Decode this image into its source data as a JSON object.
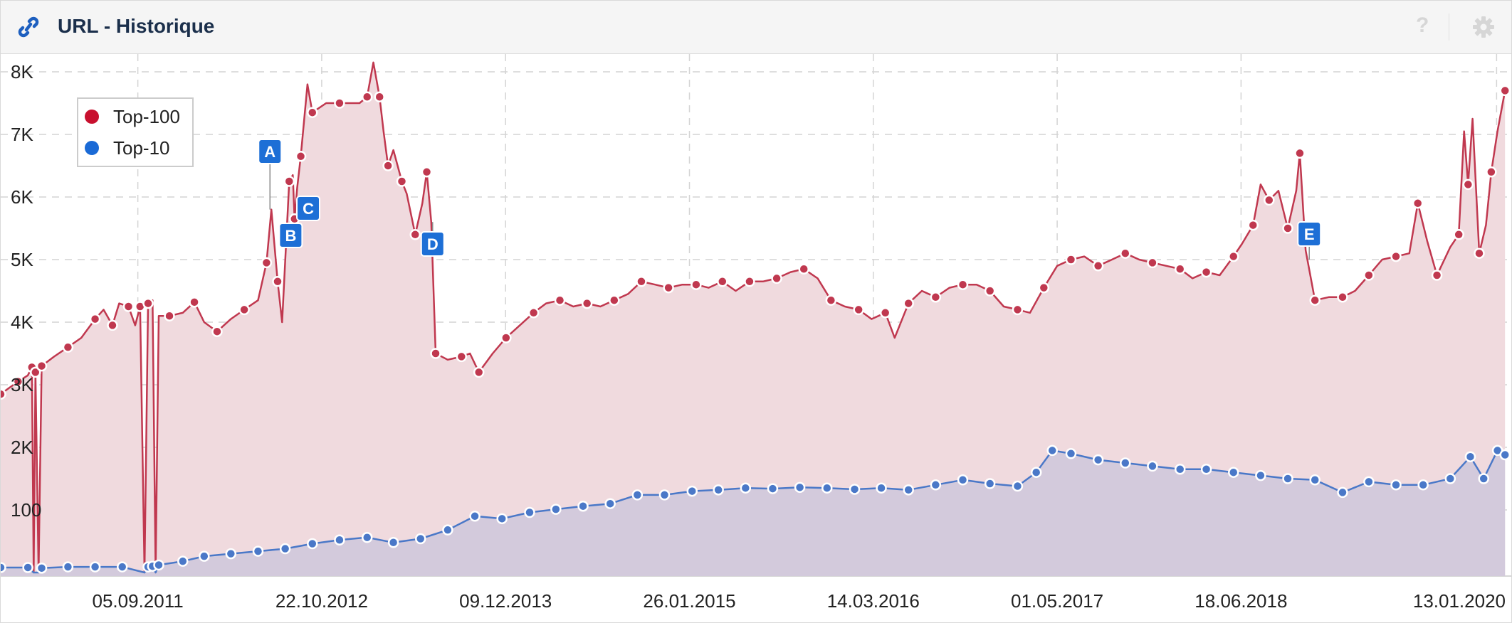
{
  "header": {
    "title": "URL - Historique",
    "help_label": "?",
    "icons": {
      "left": "link-icon",
      "help": "question-icon",
      "settings": "gear-icon"
    },
    "accent_color": "#1d5fbf"
  },
  "legend": {
    "placement": "top-left",
    "items": [
      {
        "label": "Top-100",
        "color": "#c8102e"
      },
      {
        "label": "Top-10",
        "color": "#1a6ad6"
      }
    ]
  },
  "chart_data": {
    "type": "area",
    "x_tick_labels": [
      "05.09.2011",
      "22.10.2012",
      "09.12.2013",
      "26.01.2015",
      "14.03.2016",
      "01.05.2017",
      "18.06.2018",
      "13.01.2020"
    ],
    "y_tick_labels": [
      "100",
      "2K",
      "3K",
      "4K",
      "5K",
      "6K",
      "7K",
      "8K"
    ],
    "ylim": [
      0,
      8200
    ],
    "xlim": [
      "2010-11-01",
      "2020-02-15"
    ],
    "grid": true,
    "series": [
      {
        "name": "Top-100",
        "color": "#c0384f",
        "fill": "#f0dade",
        "points": [
          [
            "2010-11-01",
            2850
          ],
          [
            "2010-11-20",
            2950
          ],
          [
            "2010-12-10",
            3050
          ],
          [
            "2011-01-01",
            3150
          ],
          [
            "2011-01-10",
            3280
          ],
          [
            "2011-01-14",
            0
          ],
          [
            "2011-01-18",
            3200
          ],
          [
            "2011-01-25",
            0
          ],
          [
            "2011-02-01",
            3300
          ],
          [
            "2011-03-01",
            3450
          ],
          [
            "2011-04-01",
            3600
          ],
          [
            "2011-05-01",
            3750
          ],
          [
            "2011-06-01",
            4050
          ],
          [
            "2011-06-20",
            4200
          ],
          [
            "2011-07-10",
            3950
          ],
          [
            "2011-07-25",
            4300
          ],
          [
            "2011-08-15",
            4250
          ],
          [
            "2011-08-30",
            3950
          ],
          [
            "2011-09-10",
            4250
          ],
          [
            "2011-09-20",
            0
          ],
          [
            "2011-09-28",
            4300
          ],
          [
            "2011-10-08",
            4350
          ],
          [
            "2011-10-15",
            0
          ],
          [
            "2011-10-22",
            4100
          ],
          [
            "2011-11-15",
            4100
          ],
          [
            "2011-12-15",
            4150
          ],
          [
            "2012-01-10",
            4320
          ],
          [
            "2012-02-01",
            4000
          ],
          [
            "2012-03-01",
            3850
          ],
          [
            "2012-04-01",
            4050
          ],
          [
            "2012-05-01",
            4200
          ],
          [
            "2012-06-01",
            4350
          ],
          [
            "2012-06-20",
            4950
          ],
          [
            "2012-07-01",
            5800
          ],
          [
            "2012-07-15",
            4650
          ],
          [
            "2012-07-25",
            4000
          ],
          [
            "2012-08-10",
            6250
          ],
          [
            "2012-08-18",
            6350
          ],
          [
            "2012-08-22",
            5650
          ],
          [
            "2012-08-28",
            6150
          ],
          [
            "2012-09-05",
            6650
          ],
          [
            "2012-09-20",
            7800
          ],
          [
            "2012-10-01",
            7350
          ],
          [
            "2012-11-01",
            7500
          ],
          [
            "2012-12-01",
            7500
          ],
          [
            "2013-01-15",
            7500
          ],
          [
            "2013-02-01",
            7600
          ],
          [
            "2013-02-15",
            8150
          ],
          [
            "2013-03-01",
            7600
          ],
          [
            "2013-03-10",
            7050
          ],
          [
            "2013-03-20",
            6500
          ],
          [
            "2013-04-01",
            6750
          ],
          [
            "2013-04-20",
            6250
          ],
          [
            "2013-05-01",
            6050
          ],
          [
            "2013-05-20",
            5400
          ],
          [
            "2013-06-05",
            5900
          ],
          [
            "2013-06-15",
            6400
          ],
          [
            "2013-06-25",
            5600
          ],
          [
            "2013-07-05",
            3500
          ],
          [
            "2013-08-01",
            3400
          ],
          [
            "2013-09-01",
            3450
          ],
          [
            "2013-09-20",
            3500
          ],
          [
            "2013-10-10",
            3200
          ],
          [
            "2013-11-10",
            3500
          ],
          [
            "2013-12-10",
            3750
          ],
          [
            "2014-01-10",
            3950
          ],
          [
            "2014-02-10",
            4150
          ],
          [
            "2014-03-10",
            4300
          ],
          [
            "2014-04-10",
            4350
          ],
          [
            "2014-05-10",
            4250
          ],
          [
            "2014-06-10",
            4300
          ],
          [
            "2014-07-10",
            4250
          ],
          [
            "2014-08-10",
            4350
          ],
          [
            "2014-09-10",
            4450
          ],
          [
            "2014-10-10",
            4650
          ],
          [
            "2014-11-10",
            4600
          ],
          [
            "2014-12-10",
            4550
          ],
          [
            "2015-01-10",
            4600
          ],
          [
            "2015-02-10",
            4600
          ],
          [
            "2015-03-10",
            4550
          ],
          [
            "2015-04-10",
            4650
          ],
          [
            "2015-05-10",
            4500
          ],
          [
            "2015-06-10",
            4650
          ],
          [
            "2015-07-10",
            4650
          ],
          [
            "2015-08-10",
            4700
          ],
          [
            "2015-09-10",
            4800
          ],
          [
            "2015-10-10",
            4850
          ],
          [
            "2015-11-10",
            4700
          ],
          [
            "2015-12-10",
            4350
          ],
          [
            "2016-01-10",
            4250
          ],
          [
            "2016-02-10",
            4200
          ],
          [
            "2016-03-10",
            4050
          ],
          [
            "2016-04-10",
            4150
          ],
          [
            "2016-05-01",
            3750
          ],
          [
            "2016-06-01",
            4300
          ],
          [
            "2016-07-01",
            4500
          ],
          [
            "2016-08-01",
            4400
          ],
          [
            "2016-09-01",
            4550
          ],
          [
            "2016-10-01",
            4600
          ],
          [
            "2016-11-01",
            4600
          ],
          [
            "2016-12-01",
            4500
          ],
          [
            "2017-01-01",
            4250
          ],
          [
            "2017-02-01",
            4200
          ],
          [
            "2017-03-01",
            4150
          ],
          [
            "2017-04-01",
            4550
          ],
          [
            "2017-05-01",
            4900
          ],
          [
            "2017-06-01",
            5000
          ],
          [
            "2017-07-01",
            5050
          ],
          [
            "2017-08-01",
            4900
          ],
          [
            "2017-09-01",
            5000
          ],
          [
            "2017-10-01",
            5100
          ],
          [
            "2017-11-01",
            5000
          ],
          [
            "2017-12-01",
            4950
          ],
          [
            "2018-01-01",
            4900
          ],
          [
            "2018-02-01",
            4850
          ],
          [
            "2018-03-01",
            4700
          ],
          [
            "2018-04-01",
            4800
          ],
          [
            "2018-05-01",
            4750
          ],
          [
            "2018-06-01",
            5050
          ],
          [
            "2018-06-20",
            5250
          ],
          [
            "2018-07-15",
            5550
          ],
          [
            "2018-08-01",
            6200
          ],
          [
            "2018-08-20",
            5950
          ],
          [
            "2018-09-10",
            6100
          ],
          [
            "2018-10-01",
            5500
          ],
          [
            "2018-10-20",
            6100
          ],
          [
            "2018-10-28",
            6700
          ],
          [
            "2018-11-10",
            5150
          ],
          [
            "2018-12-01",
            4350
          ],
          [
            "2019-01-01",
            4400
          ],
          [
            "2019-02-01",
            4400
          ],
          [
            "2019-03-01",
            4500
          ],
          [
            "2019-04-01",
            4750
          ],
          [
            "2019-05-01",
            5000
          ],
          [
            "2019-06-01",
            5050
          ],
          [
            "2019-07-01",
            5100
          ],
          [
            "2019-07-20",
            5900
          ],
          [
            "2019-08-10",
            5300
          ],
          [
            "2019-09-01",
            4750
          ],
          [
            "2019-10-01",
            5200
          ],
          [
            "2019-10-20",
            5400
          ],
          [
            "2019-11-01",
            7050
          ],
          [
            "2019-11-10",
            6200
          ],
          [
            "2019-11-20",
            7250
          ],
          [
            "2019-12-05",
            5100
          ],
          [
            "2019-12-20",
            5550
          ],
          [
            "2020-01-01",
            6400
          ],
          [
            "2020-01-15",
            7050
          ],
          [
            "2020-02-01",
            7700
          ]
        ]
      },
      {
        "name": "Top-10",
        "color": "#4a78c8",
        "fill": "#cfc8dc",
        "points": [
          [
            "2010-11-01",
            80
          ],
          [
            "2011-01-01",
            80
          ],
          [
            "2011-01-14",
            0
          ],
          [
            "2011-01-25",
            0
          ],
          [
            "2011-02-01",
            70
          ],
          [
            "2011-04-01",
            90
          ],
          [
            "2011-06-01",
            90
          ],
          [
            "2011-08-01",
            90
          ],
          [
            "2011-09-20",
            0
          ],
          [
            "2011-09-28",
            90
          ],
          [
            "2011-10-08",
            100
          ],
          [
            "2011-10-15",
            0
          ],
          [
            "2011-10-22",
            120
          ],
          [
            "2011-12-15",
            180
          ],
          [
            "2012-02-01",
            260
          ],
          [
            "2012-04-01",
            300
          ],
          [
            "2012-06-01",
            340
          ],
          [
            "2012-08-01",
            380
          ],
          [
            "2012-10-01",
            460
          ],
          [
            "2012-12-01",
            520
          ],
          [
            "2013-02-01",
            560
          ],
          [
            "2013-04-01",
            480
          ],
          [
            "2013-06-01",
            540
          ],
          [
            "2013-08-01",
            680
          ],
          [
            "2013-10-01",
            900
          ],
          [
            "2013-12-01",
            860
          ],
          [
            "2014-02-01",
            960
          ],
          [
            "2014-04-01",
            1010
          ],
          [
            "2014-06-01",
            1060
          ],
          [
            "2014-08-01",
            1100
          ],
          [
            "2014-10-01",
            1240
          ],
          [
            "2014-12-01",
            1240
          ],
          [
            "2015-02-01",
            1300
          ],
          [
            "2015-04-01",
            1320
          ],
          [
            "2015-06-01",
            1350
          ],
          [
            "2015-08-01",
            1340
          ],
          [
            "2015-10-01",
            1360
          ],
          [
            "2015-12-01",
            1350
          ],
          [
            "2016-02-01",
            1330
          ],
          [
            "2016-04-01",
            1350
          ],
          [
            "2016-06-01",
            1320
          ],
          [
            "2016-08-01",
            1400
          ],
          [
            "2016-10-01",
            1480
          ],
          [
            "2016-12-01",
            1420
          ],
          [
            "2017-02-01",
            1380
          ],
          [
            "2017-03-15",
            1600
          ],
          [
            "2017-04-20",
            1950
          ],
          [
            "2017-06-01",
            1900
          ],
          [
            "2017-08-01",
            1800
          ],
          [
            "2017-10-01",
            1750
          ],
          [
            "2017-12-01",
            1700
          ],
          [
            "2018-02-01",
            1650
          ],
          [
            "2018-04-01",
            1650
          ],
          [
            "2018-06-01",
            1600
          ],
          [
            "2018-08-01",
            1550
          ],
          [
            "2018-10-01",
            1500
          ],
          [
            "2018-12-01",
            1480
          ],
          [
            "2019-02-01",
            1280
          ],
          [
            "2019-04-01",
            1450
          ],
          [
            "2019-06-01",
            1400
          ],
          [
            "2019-08-01",
            1400
          ],
          [
            "2019-10-01",
            1500
          ],
          [
            "2019-11-15",
            1850
          ],
          [
            "2019-12-15",
            1500
          ],
          [
            "2020-01-15",
            1950
          ],
          [
            "2020-02-01",
            1880
          ]
        ]
      }
    ],
    "markers": [
      {
        "label": "A",
        "x": "2012-07-01",
        "y": 5800
      },
      {
        "label": "B",
        "x": "2012-08-15",
        "y": 5200
      },
      {
        "label": "C",
        "x": "2012-09-01",
        "y": 5700
      },
      {
        "label": "D",
        "x": "2013-06-25",
        "y": 5600
      },
      {
        "label": "E",
        "x": "2018-11-15",
        "y": 5000
      }
    ],
    "marker_color": "#1d6fd6"
  }
}
